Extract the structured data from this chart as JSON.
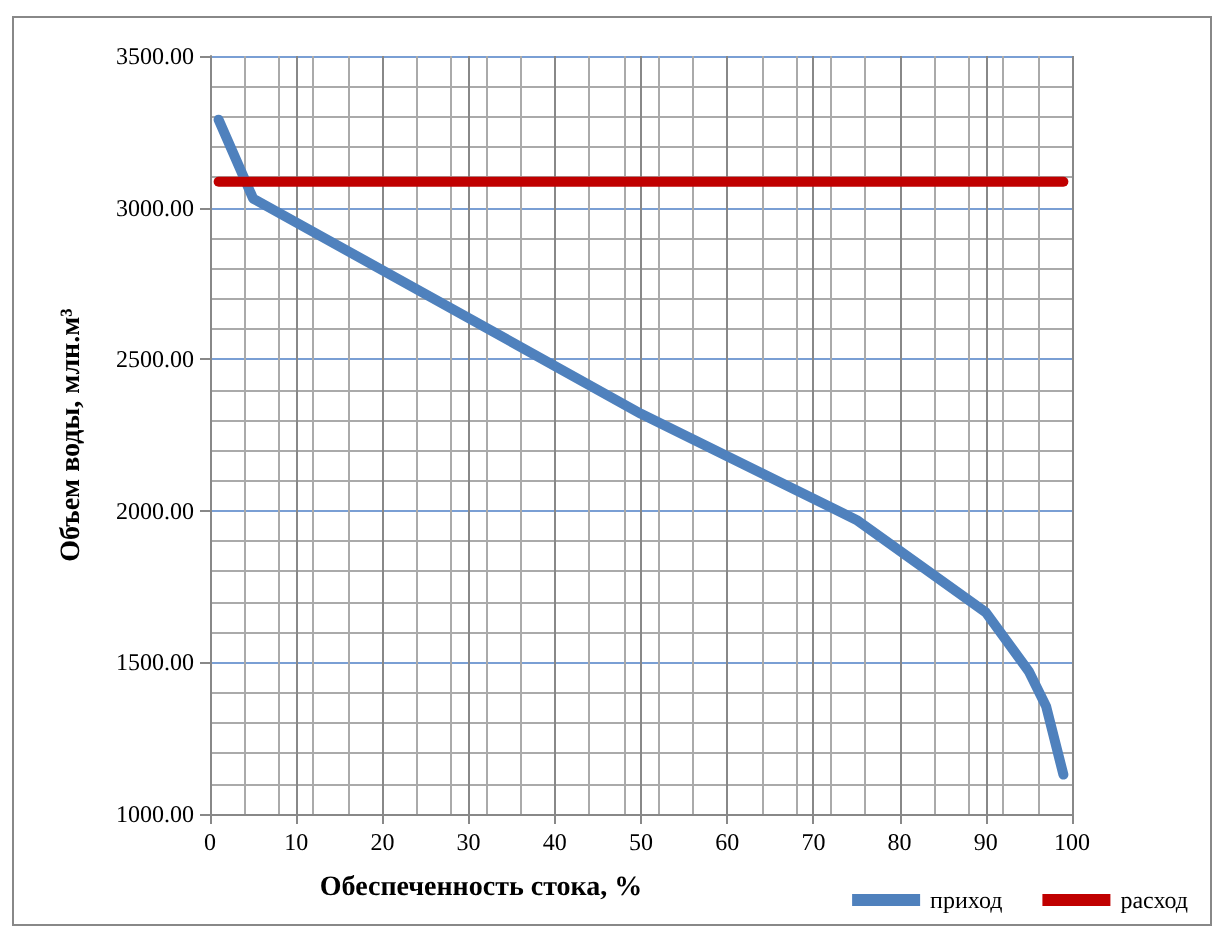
{
  "chart_data": {
    "type": "line",
    "xlabel": "Обеспеченность стока, %",
    "ylabel": "Объем воды, млн.м³",
    "series": [
      {
        "name": "приход",
        "color": "#4f81bd",
        "x": [
          1,
          5,
          50,
          75,
          90,
          95,
          97,
          99
        ],
        "values": [
          3290,
          3030,
          2320,
          1970,
          1665,
          1470,
          1355,
          1130
        ]
      },
      {
        "name": "расход",
        "color": "#c00000",
        "x": [
          1,
          99
        ],
        "values": [
          3085,
          3085
        ]
      }
    ],
    "xlim": [
      0,
      100
    ],
    "xticks": [
      0,
      10,
      20,
      30,
      40,
      50,
      60,
      70,
      80,
      90,
      100
    ],
    "ylim": [
      1000,
      3500
    ],
    "yticks": [
      {
        "value": 1000,
        "label": "1000.00"
      },
      {
        "value": 1500,
        "label": "1500.00"
      },
      {
        "value": 2000,
        "label": "2000.00"
      },
      {
        "value": 2500,
        "label": "2500.00"
      },
      {
        "value": 3000,
        "label": "3000.00"
      },
      {
        "value": 3500,
        "label": "3500.00"
      }
    ],
    "grid": true,
    "legend": "bottom right",
    "marker": "none",
    "line_style": "solid"
  }
}
